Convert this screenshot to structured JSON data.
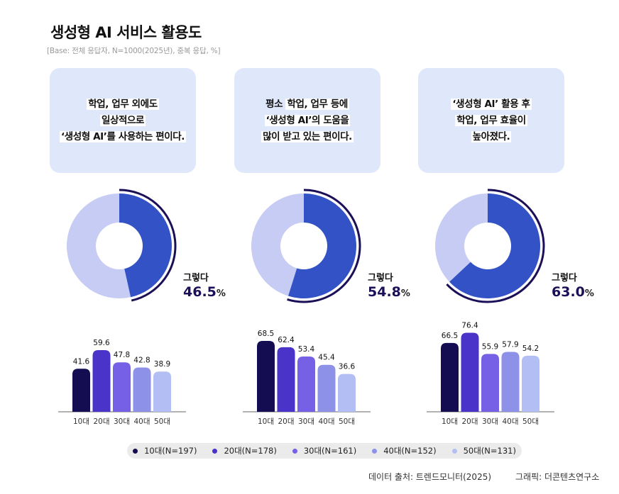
{
  "title": "생성형 AI 서비스 활용도",
  "subtitle": "[Base: 전체 응답자, N=1000(2025년), 중복 응답, %]",
  "colors": {
    "donut_yes": "#3352c6",
    "donut_no": "#c6ccf3",
    "arc": "#1b1057",
    "box": "#dfe7fb",
    "ages": [
      "#140d52",
      "#4a33c9",
      "#7560e6",
      "#8d92e8",
      "#b3bff4"
    ]
  },
  "panels": [
    {
      "lines": [
        [
          "학업, 업무 외에도"
        ],
        [
          "일상적으로"
        ],
        [
          "‘생성형 AI’를 사용하는 편이다."
        ]
      ]
    },
    {
      "lines": [
        [
          "평소 ",
          "학업, 업무 등에"
        ],
        [
          "‘생성형 AI’의 도움을"
        ],
        [
          "많이 받고 있는 편이다."
        ]
      ]
    },
    {
      "lines": [
        [
          "‘생성형 AI’ 활용 후"
        ],
        [
          "학업, 업무 효율이"
        ],
        [
          "높아졌다."
        ]
      ]
    }
  ],
  "legend": [
    "10대(N=197)",
    "20대(N=178)",
    "30대(N=161)",
    "40대(N=152)",
    "50대(N=131)"
  ],
  "footer": {
    "source": "데이터 출처: 트렌드모니터(2025)",
    "graphic": "그래픽: 더콘텐츠연구소"
  },
  "chart_data": [
    {
      "type": "pie",
      "title": "학업, 업무 외에도 일상적으로 ‘생성형 AI’를 사용하는 편이다.",
      "label": "그렇다",
      "value": 46.5,
      "value_text": "46.5",
      "unit": "%",
      "age_bars": {
        "type": "bar",
        "categories": [
          "10대",
          "20대",
          "30대",
          "40대",
          "50대"
        ],
        "values": [
          41.6,
          59.6,
          47.8,
          42.8,
          38.9
        ]
      }
    },
    {
      "type": "pie",
      "title": "평소 학업, 업무 등에 ‘생성형 AI’의 도움을 많이 받고 있는 편이다.",
      "label": "그렇다",
      "value": 54.8,
      "value_text": "54.8",
      "unit": "%",
      "age_bars": {
        "type": "bar",
        "categories": [
          "10대",
          "20대",
          "30대",
          "40대",
          "50대"
        ],
        "values": [
          68.5,
          62.4,
          53.4,
          45.4,
          36.6
        ]
      }
    },
    {
      "type": "pie",
      "title": "‘생성형 AI’ 활용 후 학업, 업무 효율이 높아졌다.",
      "label": "그렇다",
      "value": 63.0,
      "value_text": "63.0",
      "unit": "%",
      "age_bars": {
        "type": "bar",
        "categories": [
          "10대",
          "20대",
          "30대",
          "40대",
          "50대"
        ],
        "values": [
          66.5,
          76.4,
          55.9,
          57.9,
          54.2
        ]
      }
    }
  ]
}
